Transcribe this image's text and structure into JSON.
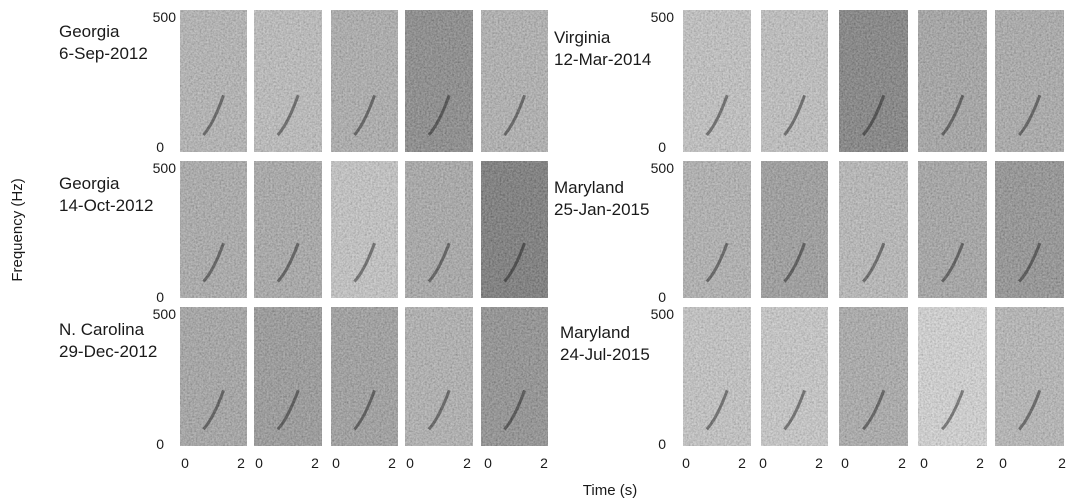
{
  "figure": {
    "y_axis_label": "Frequency (Hz)",
    "x_axis_label": "Time (s)",
    "freq_ticks": [
      "500",
      "0"
    ],
    "time_ticks": [
      "0",
      "2"
    ]
  },
  "groups": [
    {
      "location": "Georgia",
      "date": "6-Sep-2012",
      "panels": [
        0.42,
        0.35,
        0.48,
        0.78,
        0.45
      ]
    },
    {
      "location": "Virginia",
      "date": "12-Mar-2014",
      "panels": [
        0.3,
        0.32,
        0.85,
        0.55,
        0.5
      ]
    },
    {
      "location": "Georgia",
      "date": "14-Oct-2012",
      "panels": [
        0.5,
        0.52,
        0.28,
        0.52,
        0.92
      ]
    },
    {
      "location": "Maryland",
      "date": "25-Jan-2015",
      "panels": [
        0.45,
        0.62,
        0.38,
        0.55,
        0.7
      ]
    },
    {
      "location": "N. Carolina",
      "date": "29-Dec-2012",
      "panels": [
        0.55,
        0.65,
        0.6,
        0.45,
        0.72
      ]
    },
    {
      "location": "Maryland",
      "date": "24-Jul-2015",
      "panels": [
        0.28,
        0.25,
        0.5,
        0.15,
        0.4
      ]
    }
  ],
  "colors": {
    "ink": "#1a1a1a",
    "background": "#ffffff"
  }
}
